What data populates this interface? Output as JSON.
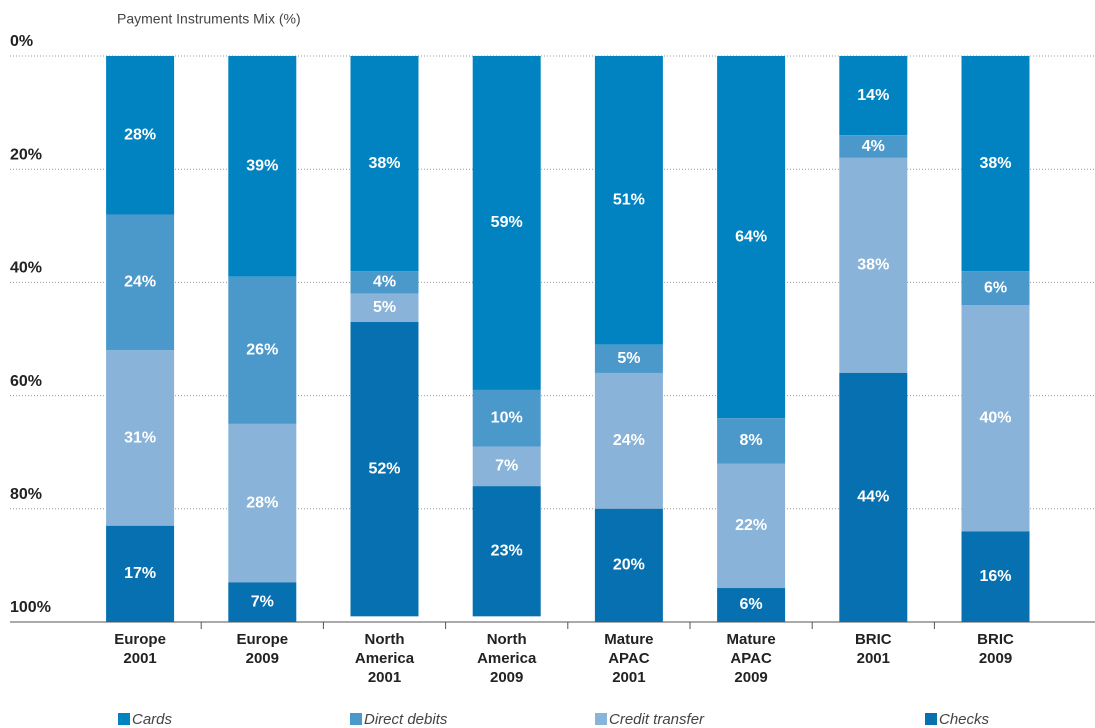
{
  "chart_data": {
    "type": "stacked_bar",
    "title": "Payment Instruments Mix (%)",
    "categories": [
      "Europe 2001",
      "Europe 2009",
      "North America 2001",
      "North America 2009",
      "Mature APAC 2001",
      "Mature APAC 2009",
      "BRIC 2001",
      "BRIC 2009"
    ],
    "series": [
      {
        "name": "Cards",
        "color": "#0283c1",
        "values": [
          28,
          39,
          38,
          59,
          51,
          64,
          14,
          38
        ],
        "value_labels": [
          "28%",
          "39%",
          "38%",
          "59%",
          "51%",
          "64%",
          "14%",
          "38%"
        ]
      },
      {
        "name": "Direct debits",
        "color": "#4b98cb",
        "values": [
          24,
          26,
          4,
          10,
          5,
          8,
          4,
          6
        ],
        "value_labels": [
          "24%",
          "26%",
          "4%",
          "10%",
          "5%",
          "8%",
          "4%",
          "6%"
        ]
      },
      {
        "name": "Credit transfer",
        "color": "#89b3d8",
        "values": [
          31,
          28,
          5,
          7,
          24,
          22,
          38,
          40
        ],
        "value_labels": [
          "31%",
          "28%",
          "5%",
          "7%",
          "24%",
          "22%",
          "38%",
          "40%"
        ]
      },
      {
        "name": "Checks",
        "color": "#0670b0",
        "values": [
          17,
          7,
          52,
          23,
          20,
          6,
          44,
          16
        ],
        "value_labels": [
          "17%",
          "7%",
          "52%",
          "23%",
          "20%",
          "6%",
          "44%",
          "16%"
        ]
      }
    ],
    "ylim": [
      0,
      100
    ],
    "y_inverted": true,
    "yticks": [
      {
        "value": 0,
        "label": "0%"
      },
      {
        "value": 20,
        "label": "20%"
      },
      {
        "value": 40,
        "label": "40%"
      },
      {
        "value": 60,
        "label": "60%"
      },
      {
        "value": 80,
        "label": "80%"
      },
      {
        "value": 100,
        "label": "100%"
      }
    ],
    "grid": true,
    "legend": "bottom"
  }
}
